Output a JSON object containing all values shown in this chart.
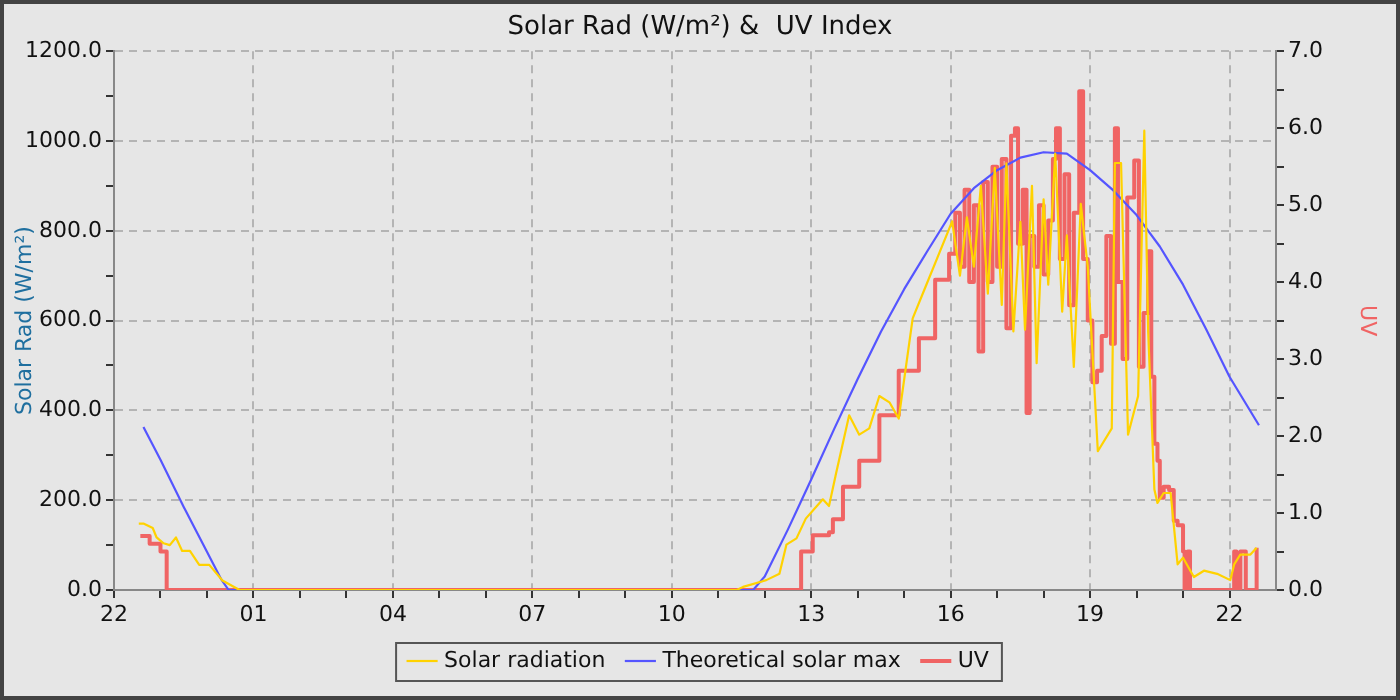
{
  "chart_data": {
    "type": "line",
    "title": "Solar Rad (W/m²) &  UV Index",
    "ylabel": "Solar Rad (W/m²)",
    "y2label": "UV",
    "xlim": [
      "--01-01T22:00",
      "--01-02T23:00"
    ],
    "xticks": [
      {
        "value": "--01-01T22:00",
        "label": "22"
      },
      {
        "value": "--01-01T23:00",
        "label": null
      },
      {
        "value": "--01-02T00:00",
        "label": null
      },
      {
        "value": "--01-02T01:00",
        "label": "01"
      },
      {
        "value": "--01-02T02:00",
        "label": null
      },
      {
        "value": "--01-02T03:00",
        "label": null
      },
      {
        "value": "--01-02T04:00",
        "label": "04"
      },
      {
        "value": "--01-02T05:00",
        "label": null
      },
      {
        "value": "--01-02T06:00",
        "label": null
      },
      {
        "value": "--01-02T07:00",
        "label": "07"
      },
      {
        "value": "--01-02T08:00",
        "label": null
      },
      {
        "value": "--01-02T09:00",
        "label": null
      },
      {
        "value": "--01-02T10:00",
        "label": "10"
      },
      {
        "value": "--01-02T11:00",
        "label": null
      },
      {
        "value": "--01-02T12:00",
        "label": null
      },
      {
        "value": "--01-02T13:00",
        "label": "13"
      },
      {
        "value": "--01-02T14:00",
        "label": null
      },
      {
        "value": "--01-02T15:00",
        "label": null
      },
      {
        "value": "--01-02T16:00",
        "label": "16"
      },
      {
        "value": "--01-02T17:00",
        "label": null
      },
      {
        "value": "--01-02T18:00",
        "label": null
      },
      {
        "value": "--01-02T19:00",
        "label": "19"
      },
      {
        "value": "--01-02T20:00",
        "label": null
      },
      {
        "value": "--01-02T21:00",
        "label": null
      },
      {
        "value": "--01-02T22:00",
        "label": "22"
      }
    ],
    "ylim": [
      0,
      1200
    ],
    "yticks": [
      {
        "value": 0,
        "label": "0.0"
      },
      {
        "value": 100,
        "label": null
      },
      {
        "value": 200,
        "label": "200.0"
      },
      {
        "value": 300,
        "label": null
      },
      {
        "value": 400,
        "label": "400.0"
      },
      {
        "value": 500,
        "label": null
      },
      {
        "value": 600,
        "label": "600.0"
      },
      {
        "value": 700,
        "label": null
      },
      {
        "value": 800,
        "label": "800.0"
      },
      {
        "value": 900,
        "label": null
      },
      {
        "value": 1000,
        "label": "1000.0"
      },
      {
        "value": 1100,
        "label": null
      },
      {
        "value": 1200,
        "label": "1200.0"
      }
    ],
    "y2lim": [
      0,
      7
    ],
    "y2ticks": [
      {
        "value": 0,
        "label": "0.0"
      },
      {
        "value": 0.5,
        "label": null
      },
      {
        "value": 1,
        "label": "1.0"
      },
      {
        "value": 1.5,
        "label": null
      },
      {
        "value": 2,
        "label": "2.0"
      },
      {
        "value": 2.5,
        "label": null
      },
      {
        "value": 3,
        "label": "3.0"
      },
      {
        "value": 3.5,
        "label": null
      },
      {
        "value": 4,
        "label": "4.0"
      },
      {
        "value": 4.5,
        "label": null
      },
      {
        "value": 5,
        "label": "5.0"
      },
      {
        "value": 5.5,
        "label": null
      },
      {
        "value": 6,
        "label": "6.0"
      },
      {
        "value": 6.5,
        "label": null
      },
      {
        "value": 7,
        "label": "7.0"
      }
    ],
    "grid": true,
    "legend": "bottom",
    "marker": "none",
    "line_style": "solid",
    "series": [
      {
        "name": "Solar radiation",
        "color": "#ffd200",
        "x": [
          "--01-01T22:32",
          "--01-01T22:38",
          "--01-01T22:50",
          "--01-01T22:55",
          "--01-01T23:04",
          "--01-01T23:12",
          "--01-01T23:20",
          "--01-01T23:28",
          "--01-01T23:38",
          "--01-01T23:50",
          "--01-02T00:03",
          "--01-02T00:20",
          "--01-02T00:38",
          "--01-02T00:42",
          "--01-02T11:24",
          "--01-02T11:32",
          "--01-02T12:02",
          "--01-02T12:19",
          "--01-02T12:28",
          "--01-02T12:41",
          "--01-02T12:53",
          "--01-02T13:15",
          "--01-02T13:23",
          "--01-02T13:32",
          "--01-02T13:49",
          "--01-02T14:02",
          "--01-02T14:15",
          "--01-02T14:28",
          "--01-02T14:41",
          "--01-02T14:53",
          "--01-02T15:11",
          "--01-02T15:28",
          "--01-02T16:02",
          "--01-02T16:12",
          "--01-02T16:21",
          "--01-02T16:30",
          "--01-02T16:39",
          "--01-02T16:48",
          "--01-02T16:57",
          "--01-02T17:06",
          "--01-02T17:12",
          "--01-02T17:21",
          "--01-02T17:30",
          "--01-02T17:36",
          "--01-02T17:45",
          "--01-02T17:51",
          "--01-02T18:00",
          "--01-02T18:06",
          "--01-02T18:15",
          "--01-02T18:24",
          "--01-02T18:30",
          "--01-02T18:39",
          "--01-02T18:48",
          "--01-02T18:57",
          "--01-02T19:10",
          "--01-02T19:28",
          "--01-02T19:32",
          "--01-02T19:40",
          "--01-02T19:49",
          "--01-02T20:02",
          "--01-02T20:10",
          "--01-02T20:15",
          "--01-02T20:23",
          "--01-02T20:27",
          "--01-02T20:35",
          "--01-02T20:44",
          "--01-02T20:53",
          "--01-02T21:00",
          "--01-02T21:14",
          "--01-02T21:27",
          "--01-02T21:44",
          "--01-02T22:01",
          "--01-02T22:06",
          "--01-02T22:14",
          "--01-02T22:27",
          "--01-02T22:35"
        ],
        "values": [
          148,
          148,
          138,
          117,
          104,
          100,
          117,
          87,
          87,
          56,
          56,
          21,
          4,
          0,
          0,
          7,
          22,
          36,
          101,
          115,
          159,
          202,
          187,
          259,
          389,
          346,
          360,
          432,
          418,
          382,
          605,
          677,
          821,
          700,
          830,
          720,
          900,
          660,
          940,
          635,
          950,
          576,
          820,
          580,
          900,
          505,
          870,
          680,
          972,
          620,
          790,
          497,
          860,
          720,
          309,
          360,
          951,
          951,
          346,
          432,
          1023,
          575,
          224,
          194,
          216,
          216,
          57,
          72,
          29,
          43,
          36,
          22,
          57,
          79,
          79,
          94
        ]
      },
      {
        "name": "Theoretical solar max",
        "color": "#5555ff",
        "x": [
          "--01-01T22:38",
          "--01-01T23:00",
          "--01-01T23:30",
          "--01-02T00:00",
          "--01-02T00:18",
          "--01-02T00:28",
          "--01-02T11:45",
          "--01-02T12:00",
          "--01-02T12:30",
          "--01-02T13:00",
          "--01-02T13:30",
          "--01-02T14:00",
          "--01-02T14:30",
          "--01-02T15:00",
          "--01-02T15:30",
          "--01-02T16:00",
          "--01-02T16:30",
          "--01-02T17:00",
          "--01-02T17:30",
          "--01-02T18:00",
          "--01-02T18:30",
          "--01-02T19:00",
          "--01-02T19:30",
          "--01-02T20:00",
          "--01-02T20:30",
          "--01-02T21:00",
          "--01-02T21:30",
          "--01-02T22:00",
          "--01-02T22:38"
        ],
        "values": [
          363,
          290,
          185,
          85,
          25,
          0,
          0,
          30,
          135,
          246,
          360,
          470,
          575,
          670,
          755,
          838,
          895,
          935,
          963,
          975,
          972,
          935,
          890,
          835,
          765,
          680,
          580,
          475,
          367
        ]
      },
      {
        "name": "UV",
        "color": "#f06464",
        "type": "step",
        "axis": "y2",
        "x": [
          "--01-01T22:34",
          "--01-01T22:46",
          "--01-01T23:00",
          "--01-01T23:08",
          "--01-02T12:46",
          "--01-02T12:47",
          "--01-02T13:02",
          "--01-02T13:23",
          "--01-02T13:28",
          "--01-02T13:41",
          "--01-02T14:02",
          "--01-02T14:28",
          "--01-02T14:53",
          "--01-02T15:19",
          "--01-02T15:40",
          "--01-02T15:58",
          "--01-02T16:06",
          "--01-02T16:12",
          "--01-02T16:18",
          "--01-02T16:24",
          "--01-02T16:30",
          "--01-02T16:36",
          "--01-02T16:42",
          "--01-02T16:48",
          "--01-02T16:54",
          "--01-02T17:00",
          "--01-02T17:06",
          "--01-02T17:12",
          "--01-02T17:18",
          "--01-02T17:23",
          "--01-02T17:27",
          "--01-02T17:33",
          "--01-02T17:38",
          "--01-02T17:42",
          "--01-02T17:48",
          "--01-02T17:54",
          "--01-02T18:00",
          "--01-02T18:06",
          "--01-02T18:12",
          "--01-02T18:16",
          "--01-02T18:21",
          "--01-02T18:27",
          "--01-02T18:33",
          "--01-02T18:39",
          "--01-02T18:46",
          "--01-02T18:51",
          "--01-02T18:57",
          "--01-02T19:03",
          "--01-02T19:09",
          "--01-02T19:15",
          "--01-02T19:21",
          "--01-02T19:27",
          "--01-02T19:32",
          "--01-02T19:36",
          "--01-02T19:42",
          "--01-02T19:48",
          "--01-02T19:57",
          "--01-02T20:03",
          "--01-02T20:09",
          "--01-02T20:15",
          "--01-02T20:19",
          "--01-02T20:23",
          "--01-02T20:27",
          "--01-02T20:30",
          "--01-02T20:35",
          "--01-02T20:42",
          "--01-02T20:48",
          "--01-02T20:53",
          "--01-02T21:00",
          "--01-02T21:02",
          "--01-02T21:06",
          "--01-02T21:09",
          "--01-02T22:03",
          "--01-02T22:06",
          "--01-02T22:09",
          "--01-02T22:14",
          "--01-02T22:21",
          "--01-02T22:33",
          "--01-02T22:35"
        ],
        "values": [
          0.7,
          0.6,
          0.5,
          0,
          0,
          0.5,
          0.71,
          0.75,
          0.92,
          1.34,
          1.68,
          2.27,
          2.85,
          3.27,
          4.03,
          4.37,
          4.9,
          4.2,
          5.2,
          4.0,
          5.0,
          3.1,
          5.3,
          4.0,
          5.5,
          4.2,
          5.6,
          3.4,
          5.9,
          6.0,
          4.5,
          5.2,
          2.3,
          4.6,
          4.2,
          5.0,
          4.1,
          4.8,
          5.6,
          6.0,
          4.3,
          5.4,
          3.7,
          4.9,
          6.48,
          4.3,
          3.5,
          2.7,
          2.85,
          3.3,
          4.6,
          3.2,
          6.0,
          4.0,
          3.0,
          5.1,
          5.58,
          2.9,
          3.6,
          4.4,
          2.77,
          1.9,
          1.68,
          1.2,
          1.34,
          1.3,
          0.9,
          0.84,
          0.5,
          0,
          0.5,
          0,
          0,
          0.5,
          0,
          0.5,
          0,
          0,
          0.55
        ]
      }
    ]
  }
}
